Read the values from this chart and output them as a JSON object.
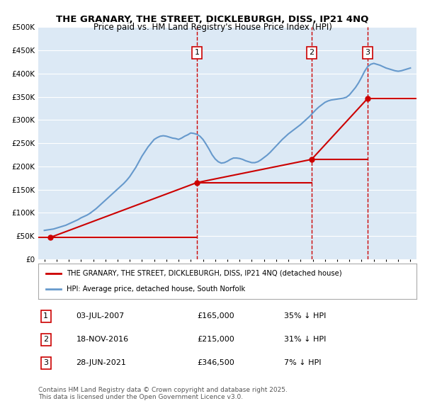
{
  "title_line1": "THE GRANARY, THE STREET, DICKLEBURGH, DISS, IP21 4NQ",
  "title_line2": "Price paid vs. HM Land Registry's House Price Index (HPI)",
  "legend_label_red": "THE GRANARY, THE STREET, DICKLEBURGH, DISS, IP21 4NQ (detached house)",
  "legend_label_blue": "HPI: Average price, detached house, South Norfolk",
  "ylabel": "",
  "xlabel": "",
  "background_color": "#dce9f5",
  "plot_bg_color": "#dce9f5",
  "red_color": "#cc0000",
  "blue_color": "#6699cc",
  "ylim": [
    0,
    500000
  ],
  "yticks": [
    0,
    50000,
    100000,
    150000,
    200000,
    250000,
    300000,
    350000,
    400000,
    450000,
    500000
  ],
  "ytick_labels": [
    "£0",
    "£50K",
    "£100K",
    "£150K",
    "£200K",
    "£250K",
    "£300K",
    "£350K",
    "£400K",
    "£450K",
    "£500K"
  ],
  "annotations": [
    {
      "num": 1,
      "x_year": 2007.5,
      "date": "03-JUL-2007",
      "price": "£165,000",
      "pct": "35% ↓ HPI"
    },
    {
      "num": 2,
      "x_year": 2016.9,
      "date": "18-NOV-2016",
      "price": "£215,000",
      "pct": "31% ↓ HPI"
    },
    {
      "num": 3,
      "x_year": 2021.5,
      "date": "28-JUN-2021",
      "price": "£346,500",
      "pct": "7% ↓ HPI"
    }
  ],
  "footnote": "Contains HM Land Registry data © Crown copyright and database right 2025.\nThis data is licensed under the Open Government Licence v3.0.",
  "hpi_years": [
    1995,
    1995.25,
    1995.5,
    1995.75,
    1996,
    1996.25,
    1996.5,
    1996.75,
    1997,
    1997.25,
    1997.5,
    1997.75,
    1998,
    1998.25,
    1998.5,
    1998.75,
    1999,
    1999.25,
    1999.5,
    1999.75,
    2000,
    2000.25,
    2000.5,
    2000.75,
    2001,
    2001.25,
    2001.5,
    2001.75,
    2002,
    2002.25,
    2002.5,
    2002.75,
    2003,
    2003.25,
    2003.5,
    2003.75,
    2004,
    2004.25,
    2004.5,
    2004.75,
    2005,
    2005.25,
    2005.5,
    2005.75,
    2006,
    2006.25,
    2006.5,
    2006.75,
    2007,
    2007.25,
    2007.5,
    2007.75,
    2008,
    2008.25,
    2008.5,
    2008.75,
    2009,
    2009.25,
    2009.5,
    2009.75,
    2010,
    2010.25,
    2010.5,
    2010.75,
    2011,
    2011.25,
    2011.5,
    2011.75,
    2012,
    2012.25,
    2012.5,
    2012.75,
    2013,
    2013.25,
    2013.5,
    2013.75,
    2014,
    2014.25,
    2014.5,
    2014.75,
    2015,
    2015.25,
    2015.5,
    2015.75,
    2016,
    2016.25,
    2016.5,
    2016.75,
    2017,
    2017.25,
    2017.5,
    2017.75,
    2018,
    2018.25,
    2018.5,
    2018.75,
    2019,
    2019.25,
    2019.5,
    2019.75,
    2020,
    2020.25,
    2020.5,
    2020.75,
    2021,
    2021.25,
    2021.5,
    2021.75,
    2022,
    2022.25,
    2022.5,
    2022.75,
    2023,
    2023.25,
    2023.5,
    2023.75,
    2024,
    2024.25,
    2024.5,
    2024.75,
    2025
  ],
  "hpi_values": [
    62000,
    63000,
    64000,
    65000,
    67000,
    69000,
    71000,
    73000,
    76000,
    79000,
    82000,
    85000,
    89000,
    92000,
    95000,
    99000,
    104000,
    109000,
    115000,
    121000,
    127000,
    133000,
    139000,
    145000,
    151000,
    157000,
    163000,
    170000,
    178000,
    188000,
    198000,
    210000,
    222000,
    232000,
    242000,
    250000,
    258000,
    262000,
    265000,
    266000,
    265000,
    263000,
    261000,
    260000,
    258000,
    261000,
    265000,
    268000,
    272000,
    271000,
    269000,
    265000,
    258000,
    248000,
    237000,
    225000,
    216000,
    210000,
    207000,
    208000,
    211000,
    215000,
    218000,
    218000,
    217000,
    215000,
    212000,
    210000,
    208000,
    208000,
    210000,
    214000,
    219000,
    224000,
    230000,
    237000,
    244000,
    251000,
    258000,
    264000,
    270000,
    275000,
    280000,
    285000,
    290000,
    296000,
    302000,
    308000,
    315000,
    322000,
    328000,
    333000,
    338000,
    341000,
    343000,
    344000,
    345000,
    346000,
    347000,
    349000,
    354000,
    362000,
    370000,
    380000,
    392000,
    405000,
    415000,
    420000,
    422000,
    420000,
    418000,
    415000,
    412000,
    410000,
    408000,
    406000,
    405000,
    406000,
    408000,
    410000,
    412000
  ],
  "price_paid_years": [
    1995.5,
    2007.5,
    2016.9,
    2021.5
  ],
  "price_paid_values": [
    47000,
    165000,
    215000,
    346500
  ],
  "xlim_start": 1994.5,
  "xlim_end": 2025.5,
  "xtick_years": [
    1995,
    1996,
    1997,
    1998,
    1999,
    2000,
    2001,
    2002,
    2003,
    2004,
    2005,
    2006,
    2007,
    2008,
    2009,
    2010,
    2011,
    2012,
    2013,
    2014,
    2015,
    2016,
    2017,
    2018,
    2019,
    2020,
    2021,
    2022,
    2023,
    2024,
    2025
  ]
}
